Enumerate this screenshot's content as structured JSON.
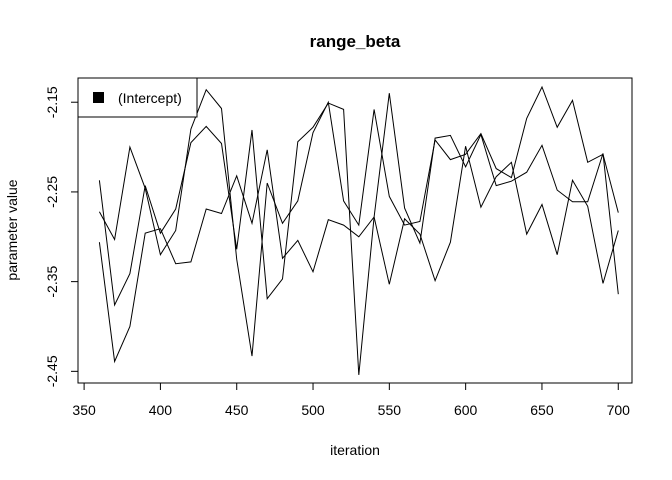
{
  "chart_data": {
    "type": "line",
    "title": "range_beta",
    "xlabel": "iteration",
    "ylabel": "parameter value",
    "xlim": [
      346,
      709
    ],
    "ylim": [
      -2.463,
      -2.123
    ],
    "x_ticks": [
      350,
      400,
      450,
      500,
      550,
      600,
      650,
      700
    ],
    "x_tick_labels": [
      "350",
      "400",
      "450",
      "500",
      "550",
      "600",
      "650",
      "700"
    ],
    "y_ticks": [
      -2.15,
      -2.25,
      -2.35,
      -2.45
    ],
    "y_tick_labels": [
      "-2.15",
      "-2.25",
      "-2.35",
      "-2.45"
    ],
    "grid": false,
    "legend": {
      "position": "top-left",
      "entries": [
        "(Intercept)"
      ],
      "symbol_color": "#000000"
    },
    "line_color": "#000000",
    "x": [
      360,
      370,
      380,
      390,
      400,
      410,
      420,
      430,
      440,
      450,
      460,
      470,
      480,
      490,
      500,
      510,
      520,
      530,
      540,
      550,
      560,
      570,
      580,
      590,
      600,
      610,
      620,
      630,
      640,
      650,
      660,
      670,
      680,
      690,
      700
    ],
    "series": [
      {
        "values": [
          -2.272,
          -2.303,
          -2.2,
          -2.246,
          -2.32,
          -2.293,
          -2.18,
          -2.136,
          -2.157,
          -2.325,
          -2.433,
          -2.24,
          -2.285,
          -2.26,
          -2.184,
          -2.15,
          -2.26,
          -2.287,
          -2.158,
          -2.255,
          -2.287,
          -2.283,
          -2.192,
          -2.214,
          -2.208,
          -2.185,
          -2.224,
          -2.234,
          -2.168,
          -2.133,
          -2.178,
          -2.148,
          -2.217,
          -2.208,
          -2.273
        ]
      },
      {
        "values": [
          -2.237,
          -2.376,
          -2.341,
          -2.243,
          -2.296,
          -2.269,
          -2.195,
          -2.177,
          -2.196,
          -2.314,
          -2.181,
          -2.369,
          -2.347,
          -2.194,
          -2.178,
          -2.151,
          -2.158,
          -2.454,
          -2.278,
          -2.14,
          -2.268,
          -2.307,
          -2.19,
          -2.187,
          -2.222,
          -2.186,
          -2.243,
          -2.238,
          -2.228,
          -2.198,
          -2.248,
          -2.261,
          -2.261,
          -2.207,
          -2.364
        ]
      },
      {
        "values": [
          -2.306,
          -2.439,
          -2.4,
          -2.296,
          -2.291,
          -2.33,
          -2.328,
          -2.269,
          -2.274,
          -2.232,
          -2.285,
          -2.203,
          -2.324,
          -2.304,
          -2.339,
          -2.281,
          -2.287,
          -2.3,
          -2.278,
          -2.353,
          -2.28,
          -2.297,
          -2.349,
          -2.306,
          -2.199,
          -2.267,
          -2.233,
          -2.217,
          -2.297,
          -2.264,
          -2.32,
          -2.237,
          -2.266,
          -2.352,
          -2.293
        ]
      }
    ]
  }
}
